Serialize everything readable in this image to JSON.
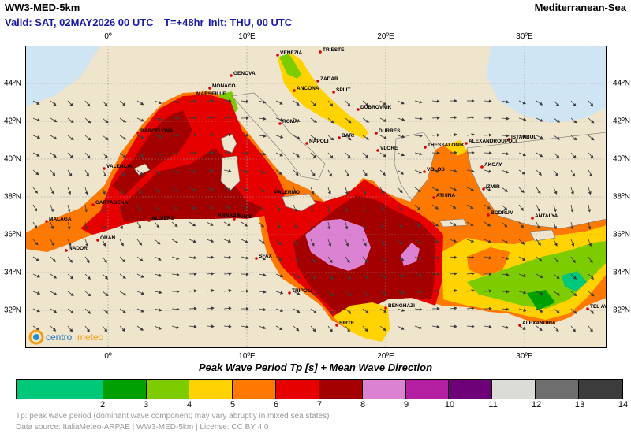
{
  "header": {
    "model": "WW3-MED-5km",
    "region": "Mediterranean-Sea",
    "valid": "Valid: SAT, 02MAY2026 00 UTC",
    "tstep": "T=+48hr",
    "init": "Init: THU, 00 UTC"
  },
  "axes": {
    "lon_labels": [
      "0º",
      "10ºE",
      "20ºE",
      "30ºE"
    ],
    "lat_labels": [
      "44ºN",
      "42ºN",
      "40ºN",
      "38ºN",
      "36ºN",
      "34ºN",
      "32ºN"
    ]
  },
  "map": {
    "cities": [
      "TRIESTE",
      "VENEZIA",
      "GENOVA",
      "ZADAR",
      "MONACO",
      "ANCONA",
      "MARSEILLE",
      "SPLIT",
      "DUBROVNIK",
      "ROMA",
      "BARCELONA",
      "BARI",
      "DURRES",
      "NAPOLI",
      "VLORE",
      "ISTANBUL",
      "ALEXANDROUPOLI",
      "THESSALONIKI",
      "VALENCIA",
      "AKCAY",
      "VOLOS",
      "IZMIR",
      "PALERMO",
      "ATHINA",
      "CARTAGENA",
      "ALGIERS",
      "ANNABA",
      "TUNIS",
      "BODRUM",
      "ANTALYA",
      "MALAGA",
      "ORAN",
      "NADOR",
      "SFAX",
      "TRIPOLI",
      "BENGHAZI",
      "TEL AVIV",
      "SIRTE",
      "ALEXANDRIA"
    ],
    "logo_a": "centro",
    "logo_b": "meteo"
  },
  "legend": {
    "caption": "Peak Wave Period Tp [s]  +  Mean Wave Direction",
    "ticks": [
      "2",
      "3",
      "4",
      "5",
      "6",
      "7",
      "8",
      "9",
      "10",
      "11",
      "12",
      "13",
      "14"
    ],
    "colors": [
      "#00c87a",
      "#00a000",
      "#7ccc00",
      "#ffd200",
      "#ff7800",
      "#e60000",
      "#a50000",
      "#dc82d2",
      "#b41ea0",
      "#6e0078",
      "#dcdcd6",
      "#6e6e6e",
      "#3c3c3c"
    ]
  },
  "notes": {
    "line1": "Tp: peak wave period (dominant wave component; may vary abruptly in mixed sea states)",
    "line2": "Data source: ItaliaMeteo-ARPAE | WW3-MED-5km | License: CC BY 4.0"
  }
}
